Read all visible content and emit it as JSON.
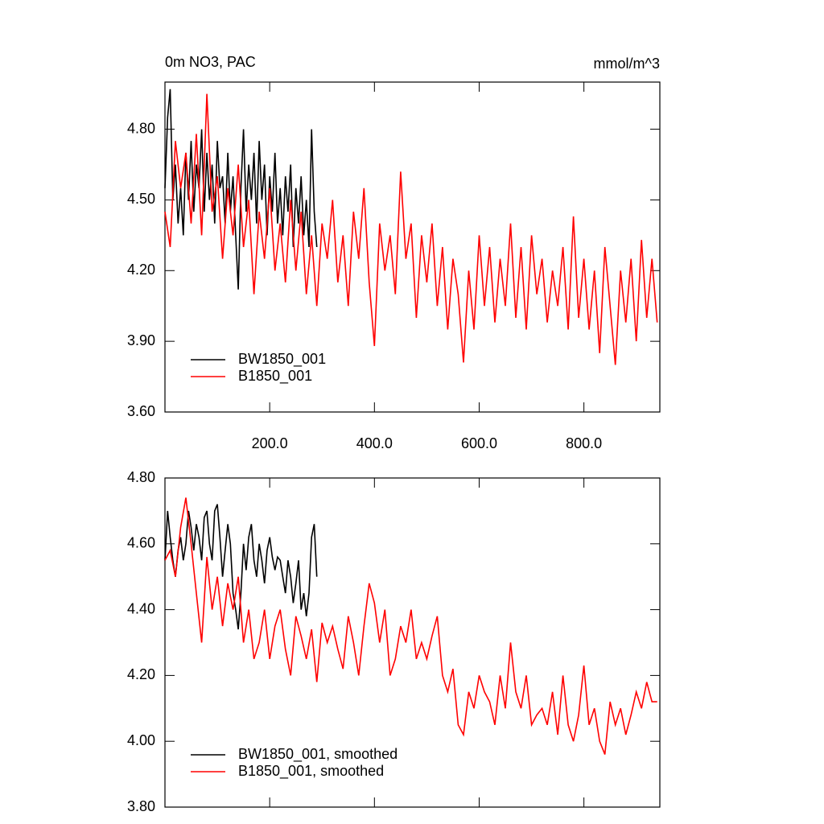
{
  "chart_data": [
    {
      "type": "line",
      "title": "0m NO3, PAC",
      "units": "mmol/m^3",
      "legend": "lower left",
      "show_xtick_labels": true,
      "xlim": [
        0,
        945
      ],
      "ylim": [
        3.6,
        5.0
      ],
      "xticks": [
        {
          "value": 200,
          "label": "200.0"
        },
        {
          "value": 400,
          "label": "400.0"
        },
        {
          "value": 600,
          "label": "600.0"
        },
        {
          "value": 800,
          "label": "800.0"
        }
      ],
      "yticks": [
        {
          "value": 3.6,
          "label": "3.60"
        },
        {
          "value": 3.9,
          "label": "3.90"
        },
        {
          "value": 4.2,
          "label": "4.20"
        },
        {
          "value": 4.5,
          "label": "4.50"
        },
        {
          "value": 4.8,
          "label": "4.80"
        }
      ],
      "series": [
        {
          "name": "BW1850_001",
          "color": "#000000",
          "x": [
            0,
            5,
            10,
            15,
            20,
            25,
            30,
            35,
            40,
            45,
            50,
            55,
            60,
            65,
            70,
            75,
            80,
            85,
            90,
            95,
            100,
            105,
            110,
            115,
            120,
            125,
            130,
            135,
            140,
            145,
            150,
            155,
            160,
            165,
            170,
            175,
            180,
            185,
            190,
            195,
            200,
            205,
            210,
            215,
            220,
            225,
            230,
            235,
            240,
            245,
            250,
            255,
            260,
            265,
            270,
            275,
            280,
            285,
            290
          ],
          "values": [
            4.55,
            4.85,
            4.97,
            4.5,
            4.65,
            4.4,
            4.55,
            4.35,
            4.7,
            4.5,
            4.75,
            4.45,
            4.65,
            4.55,
            4.8,
            4.45,
            4.7,
            4.5,
            4.65,
            4.4,
            4.75,
            4.55,
            4.6,
            4.4,
            4.7,
            4.45,
            4.6,
            4.35,
            4.12,
            4.55,
            4.8,
            4.45,
            4.65,
            4.5,
            4.7,
            4.4,
            4.75,
            4.5,
            4.65,
            4.35,
            4.6,
            4.45,
            4.7,
            4.4,
            4.55,
            4.35,
            4.6,
            4.45,
            4.65,
            4.3,
            4.55,
            4.4,
            4.6,
            4.35,
            4.5,
            4.3,
            4.8,
            4.45,
            4.3
          ]
        },
        {
          "name": "B1850_001",
          "color": "#ff0000",
          "x": [
            0,
            10,
            20,
            30,
            40,
            50,
            60,
            70,
            80,
            90,
            100,
            110,
            120,
            130,
            140,
            150,
            160,
            170,
            180,
            190,
            200,
            210,
            220,
            230,
            240,
            250,
            260,
            270,
            280,
            290,
            300,
            310,
            320,
            330,
            340,
            350,
            360,
            370,
            380,
            390,
            400,
            410,
            420,
            430,
            440,
            450,
            460,
            470,
            480,
            490,
            500,
            510,
            520,
            530,
            540,
            550,
            560,
            570,
            580,
            590,
            600,
            610,
            620,
            630,
            640,
            650,
            660,
            670,
            680,
            690,
            700,
            710,
            720,
            730,
            740,
            750,
            760,
            770,
            780,
            790,
            800,
            810,
            820,
            830,
            840,
            850,
            860,
            870,
            880,
            890,
            900,
            910,
            920,
            930,
            940
          ],
          "values": [
            4.45,
            4.3,
            4.75,
            4.55,
            4.7,
            4.4,
            4.78,
            4.35,
            4.95,
            4.45,
            4.6,
            4.25,
            4.55,
            4.35,
            4.65,
            4.3,
            4.5,
            4.1,
            4.45,
            4.25,
            4.55,
            4.2,
            4.4,
            4.15,
            4.5,
            4.2,
            4.45,
            4.1,
            4.35,
            4.05,
            4.4,
            4.25,
            4.5,
            4.15,
            4.35,
            4.05,
            4.45,
            4.25,
            4.55,
            4.15,
            3.88,
            4.4,
            4.2,
            4.35,
            4.1,
            4.62,
            4.25,
            4.4,
            4.0,
            4.35,
            4.15,
            4.4,
            4.05,
            4.3,
            3.95,
            4.25,
            4.1,
            3.81,
            4.2,
            3.95,
            4.35,
            4.05,
            4.3,
            3.98,
            4.25,
            4.05,
            4.4,
            4.0,
            4.3,
            3.95,
            4.35,
            4.1,
            4.25,
            3.98,
            4.2,
            4.05,
            4.3,
            3.95,
            4.43,
            4.0,
            4.25,
            3.95,
            4.2,
            3.85,
            4.3,
            4.05,
            3.8,
            4.2,
            3.98,
            4.25,
            3.9,
            4.33,
            4.0,
            4.25,
            3.98
          ]
        }
      ]
    },
    {
      "type": "line",
      "legend": "lower left",
      "show_xtick_labels": false,
      "xlim": [
        0,
        945
      ],
      "ylim": [
        3.8,
        4.8
      ],
      "xticks": [
        200,
        400,
        600,
        800
      ],
      "yticks": [
        {
          "value": 3.8,
          "label": "3.80"
        },
        {
          "value": 4.0,
          "label": "4.00"
        },
        {
          "value": 4.2,
          "label": "4.20"
        },
        {
          "value": 4.4,
          "label": "4.40"
        },
        {
          "value": 4.6,
          "label": "4.60"
        },
        {
          "value": 4.8,
          "label": "4.80"
        }
      ],
      "series": [
        {
          "name": "BW1850_001, smoothed",
          "color": "#000000",
          "x": [
            0,
            5,
            10,
            15,
            20,
            25,
            30,
            35,
            40,
            45,
            50,
            55,
            60,
            65,
            70,
            75,
            80,
            85,
            90,
            95,
            100,
            105,
            110,
            115,
            120,
            125,
            130,
            135,
            140,
            145,
            150,
            155,
            160,
            165,
            170,
            175,
            180,
            185,
            190,
            195,
            200,
            205,
            210,
            215,
            220,
            225,
            230,
            235,
            240,
            245,
            250,
            255,
            260,
            265,
            270,
            275,
            280,
            285,
            290
          ],
          "values": [
            4.55,
            4.7,
            4.62,
            4.55,
            4.5,
            4.58,
            4.62,
            4.55,
            4.6,
            4.7,
            4.65,
            4.58,
            4.66,
            4.62,
            4.55,
            4.68,
            4.7,
            4.6,
            4.55,
            4.7,
            4.72,
            4.62,
            4.5,
            4.58,
            4.66,
            4.6,
            4.45,
            4.4,
            4.34,
            4.45,
            4.6,
            4.52,
            4.62,
            4.66,
            4.55,
            4.5,
            4.6,
            4.55,
            4.48,
            4.58,
            4.62,
            4.56,
            4.52,
            4.56,
            4.55,
            4.5,
            4.45,
            4.55,
            4.5,
            4.42,
            4.48,
            4.55,
            4.4,
            4.45,
            4.38,
            4.45,
            4.62,
            4.66,
            4.5
          ]
        },
        {
          "name": "B1850_001, smoothed",
          "color": "#ff0000",
          "x": [
            0,
            10,
            20,
            30,
            40,
            50,
            60,
            70,
            80,
            90,
            100,
            110,
            120,
            130,
            140,
            150,
            160,
            170,
            180,
            190,
            200,
            210,
            220,
            230,
            240,
            250,
            260,
            270,
            280,
            290,
            300,
            310,
            320,
            330,
            340,
            350,
            360,
            370,
            380,
            390,
            400,
            410,
            420,
            430,
            440,
            450,
            460,
            470,
            480,
            490,
            500,
            510,
            520,
            530,
            540,
            550,
            560,
            570,
            580,
            590,
            600,
            610,
            620,
            630,
            640,
            650,
            660,
            670,
            680,
            690,
            700,
            710,
            720,
            730,
            740,
            750,
            760,
            770,
            780,
            790,
            800,
            810,
            820,
            830,
            840,
            850,
            860,
            870,
            880,
            890,
            900,
            910,
            920,
            930,
            940
          ],
          "values": [
            4.55,
            4.58,
            4.5,
            4.65,
            4.74,
            4.6,
            4.45,
            4.3,
            4.56,
            4.4,
            4.5,
            4.35,
            4.48,
            4.4,
            4.5,
            4.3,
            4.4,
            4.25,
            4.3,
            4.4,
            4.25,
            4.35,
            4.4,
            4.28,
            4.2,
            4.38,
            4.32,
            4.25,
            4.34,
            4.18,
            4.36,
            4.3,
            4.35,
            4.28,
            4.22,
            4.38,
            4.3,
            4.2,
            4.35,
            4.48,
            4.42,
            4.3,
            4.4,
            4.2,
            4.25,
            4.35,
            4.3,
            4.4,
            4.25,
            4.3,
            4.25,
            4.32,
            4.38,
            4.2,
            4.15,
            4.22,
            4.05,
            4.02,
            4.15,
            4.1,
            4.2,
            4.15,
            4.12,
            4.05,
            4.2,
            4.1,
            4.3,
            4.15,
            4.1,
            4.2,
            4.05,
            4.08,
            4.1,
            4.05,
            4.15,
            4.02,
            4.2,
            4.05,
            4.0,
            4.08,
            4.23,
            4.05,
            4.1,
            4.0,
            3.96,
            4.12,
            4.05,
            4.1,
            4.02,
            4.08,
            4.15,
            4.1,
            4.18,
            4.12,
            4.12
          ]
        }
      ]
    }
  ]
}
